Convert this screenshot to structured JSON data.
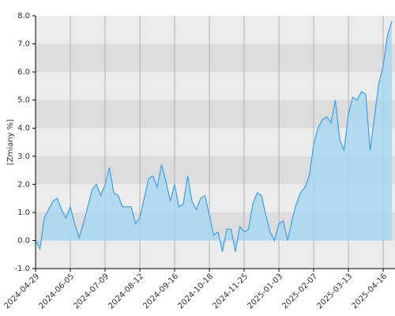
{
  "chart_data": {
    "type": "area",
    "y_label": "[Zmiany %]",
    "categories": [
      "2024-04-29",
      null,
      null,
      null,
      null,
      null,
      null,
      null,
      "2024-06-05",
      null,
      null,
      null,
      null,
      null,
      null,
      null,
      "2024-07-09",
      null,
      null,
      null,
      null,
      null,
      null,
      null,
      "2024-08-12",
      null,
      null,
      null,
      null,
      null,
      null,
      null,
      "2024-09-16",
      null,
      null,
      null,
      null,
      null,
      null,
      null,
      "2024-10-18",
      null,
      null,
      null,
      null,
      null,
      null,
      null,
      "2024-11-25",
      null,
      null,
      null,
      null,
      null,
      null,
      null,
      "2025-01-03",
      null,
      null,
      null,
      null,
      null,
      null,
      null,
      "2025-02-07",
      null,
      null,
      null,
      null,
      null,
      null,
      null,
      "2025-03-13",
      null,
      null,
      null,
      null,
      null,
      null,
      null,
      "2025-04-16",
      null,
      null
    ],
    "series": [
      {
        "color": "#4aa3e8",
        "fill": "#a9d7ee",
        "values": [
          0.0,
          -0.3,
          0.8,
          1.1,
          1.4,
          1.5,
          1.1,
          0.8,
          1.2,
          0.6,
          0.1,
          0.6,
          1.2,
          1.8,
          2.0,
          1.6,
          2.0,
          2.6,
          1.7,
          1.6,
          1.2,
          1.2,
          1.2,
          0.6,
          0.8,
          1.5,
          2.2,
          2.3,
          1.9,
          2.7,
          2.1,
          1.4,
          2.0,
          1.2,
          1.3,
          2.3,
          1.4,
          1.1,
          1.5,
          1.6,
          0.9,
          0.2,
          0.3,
          -0.4,
          0.4,
          0.4,
          -0.4,
          0.5,
          0.3,
          0.4,
          1.3,
          1.7,
          1.6,
          0.9,
          0.3,
          0.0,
          0.6,
          0.7,
          0.0,
          0.7,
          1.3,
          1.7,
          1.9,
          2.3,
          3.4,
          4.0,
          4.3,
          4.4,
          4.2,
          5.0,
          3.6,
          3.2,
          4.5,
          5.1,
          5.0,
          5.3,
          5.2,
          3.2,
          4.4,
          5.6,
          6.2,
          7.3,
          7.8
        ]
      }
    ],
    "ylim": [
      -1,
      8
    ],
    "yticks": [
      {
        "value": -1,
        "label": "-1.0"
      },
      {
        "value": 0,
        "label": "0.0"
      },
      {
        "value": 1,
        "label": "1.0"
      },
      {
        "value": 2,
        "label": "2.0"
      },
      {
        "value": 3,
        "label": "3.0"
      },
      {
        "value": 4,
        "label": "4.0"
      },
      {
        "value": 5,
        "label": "5.0"
      },
      {
        "value": 6,
        "label": "6.0"
      },
      {
        "value": 7,
        "label": "7.0"
      },
      {
        "value": 8,
        "label": "8.0"
      }
    ],
    "grid": true,
    "band_colors": [
      "#ebebeb",
      "#dcdcdc"
    ]
  }
}
